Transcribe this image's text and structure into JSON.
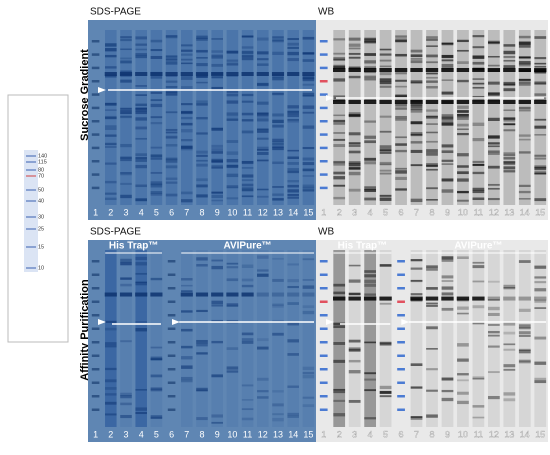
{
  "row_labels": [
    "Sucrose Gradient",
    "Affinity Purification"
  ],
  "marker": {
    "labels": [
      "140",
      "115",
      "80",
      "70",
      "50",
      "40",
      "30",
      "25",
      "15",
      "10"
    ]
  },
  "panels": [
    {
      "method": "SDS-PAGE",
      "lanes": [
        1,
        2,
        3,
        4,
        5,
        6,
        7,
        8,
        9,
        10,
        11,
        12,
        13,
        14,
        15
      ]
    },
    {
      "method": "WB",
      "lanes": [
        1,
        2,
        3,
        4,
        5,
        6,
        7,
        8,
        9,
        10,
        11,
        12,
        13,
        14,
        15
      ]
    },
    {
      "method": "SDS-PAGE",
      "groups": [
        "His Trap™",
        "AVIPure™"
      ],
      "lanes": [
        1,
        2,
        3,
        4,
        5,
        6,
        7,
        8,
        9,
        10,
        11,
        12,
        13,
        14,
        15
      ]
    },
    {
      "method": "WB",
      "groups": [
        "His Trap™",
        "AVIPure™"
      ],
      "lanes": [
        1,
        2,
        3,
        4,
        5,
        6,
        7,
        8,
        9,
        10,
        11,
        12,
        13,
        14,
        15
      ]
    }
  ]
}
